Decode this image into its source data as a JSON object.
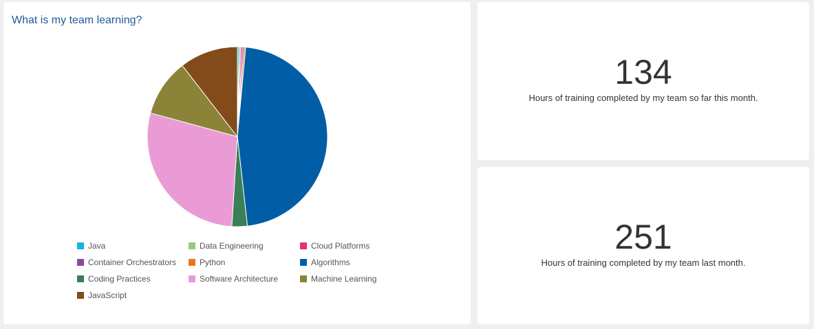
{
  "chart_data": {
    "type": "pie",
    "title": "What is my team learning?",
    "slices": [
      {
        "label": "Java",
        "value": 0.3,
        "color": "#14b3e0"
      },
      {
        "label": "Data Engineering",
        "value": 0.3,
        "color": "#95c97c"
      },
      {
        "label": "Cloud Platforms",
        "value": 0.3,
        "color": "#e3307a"
      },
      {
        "label": "Container Orchestrators",
        "value": 0.3,
        "color": "#8a4a9c"
      },
      {
        "label": "Python",
        "value": 0.3,
        "color": "#e87722"
      },
      {
        "label": "Algorithms",
        "value": 47.3,
        "color": "#005da6"
      },
      {
        "label": "Coding Practices",
        "value": 2.8,
        "color": "#3a7f55"
      },
      {
        "label": "Software Architecture",
        "value": 28.6,
        "color": "#ea9bd6"
      },
      {
        "label": "Machine Learning",
        "value": 10.4,
        "color": "#8b8438"
      },
      {
        "label": "JavaScript",
        "value": 10.6,
        "color": "#824b19"
      }
    ],
    "legend_placement": "bottom"
  },
  "stats": [
    {
      "value": "134",
      "caption": "Hours of training completed by my team so far this month."
    },
    {
      "value": "251",
      "caption": "Hours of training completed by my team last month."
    }
  ]
}
